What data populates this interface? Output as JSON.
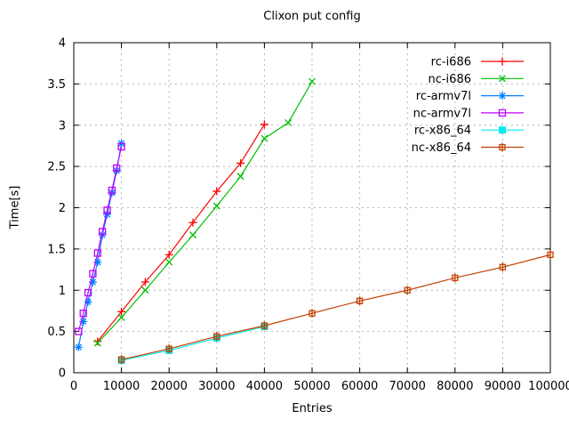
{
  "chart_data": {
    "type": "line",
    "title": "Clixon put config",
    "xlabel": "Entries",
    "ylabel": "Time[s]",
    "xlim": [
      0,
      100000
    ],
    "ylim": [
      0,
      4
    ],
    "xticks": [
      0,
      10000,
      20000,
      30000,
      40000,
      50000,
      60000,
      70000,
      80000,
      90000,
      100000
    ],
    "yticks": [
      0,
      0.5,
      1,
      1.5,
      2,
      2.5,
      3,
      3.5,
      4
    ],
    "grid": true,
    "legend_position": "inside-top-right",
    "series": [
      {
        "name": "rc-i686",
        "color": "#ff0000",
        "marker": "plus",
        "x": [
          5000,
          10000,
          15000,
          20000,
          25000,
          30000,
          35000,
          40000
        ],
        "y": [
          0.38,
          0.74,
          1.1,
          1.43,
          1.82,
          2.2,
          2.54,
          3.01
        ]
      },
      {
        "name": "nc-i686",
        "color": "#00c000",
        "marker": "cross",
        "x": [
          5000,
          10000,
          15000,
          20000,
          25000,
          30000,
          35000,
          40000,
          45000,
          50000
        ],
        "y": [
          0.36,
          0.67,
          1.0,
          1.34,
          1.67,
          2.02,
          2.38,
          2.84,
          3.03,
          3.53
        ]
      },
      {
        "name": "rc-armv7l",
        "color": "#0080ff",
        "marker": "star",
        "x": [
          1000,
          2000,
          3000,
          4000,
          5000,
          6000,
          7000,
          8000,
          9000,
          10000
        ],
        "y": [
          0.31,
          0.62,
          0.86,
          1.1,
          1.34,
          1.67,
          1.92,
          2.18,
          2.45,
          2.78
        ]
      },
      {
        "name": "nc-armv7l",
        "color": "#c000ff",
        "marker": "open-square",
        "x": [
          1000,
          2000,
          3000,
          4000,
          5000,
          6000,
          7000,
          8000,
          9000,
          10000
        ],
        "y": [
          0.5,
          0.72,
          0.97,
          1.2,
          1.45,
          1.71,
          1.97,
          2.21,
          2.48,
          2.74
        ]
      },
      {
        "name": "rc-x86_64",
        "color": "#00eeee",
        "marker": "filled-square",
        "x": [
          10000,
          20000,
          30000,
          40000
        ],
        "y": [
          0.15,
          0.27,
          0.42,
          0.56
        ]
      },
      {
        "name": "nc-x86_64",
        "color": "#c04000",
        "marker": "open-square-tick",
        "x": [
          10000,
          20000,
          30000,
          40000,
          50000,
          60000,
          70000,
          80000,
          90000,
          100000
        ],
        "y": [
          0.16,
          0.29,
          0.44,
          0.57,
          0.72,
          0.87,
          1.0,
          1.15,
          1.28,
          1.43
        ]
      }
    ]
  }
}
